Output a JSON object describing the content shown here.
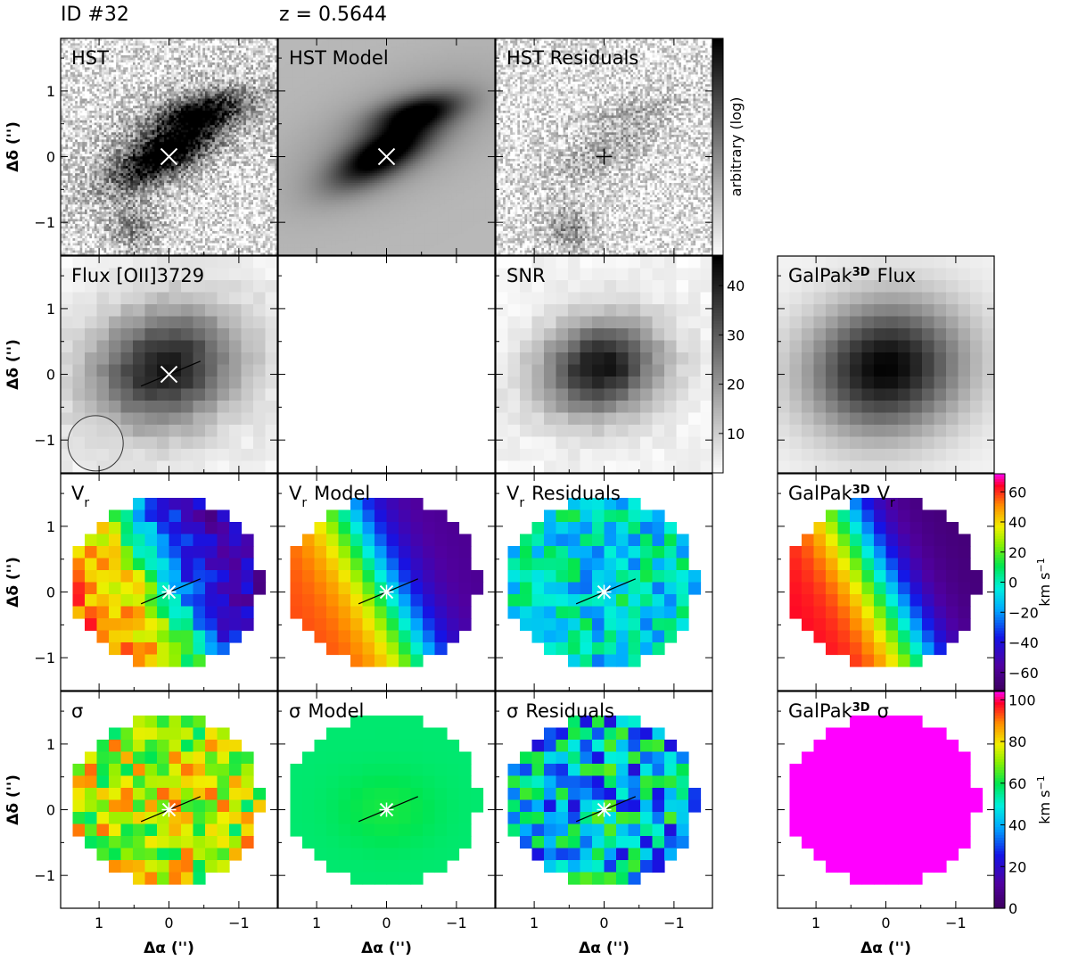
{
  "header": {
    "id_label": "ID #32",
    "z_label": "z = 0.5644"
  },
  "axes": {
    "xlabel": "Δα ('')",
    "ylabel": "Δδ ('')",
    "x_ticks": [
      "1",
      "0",
      "−1"
    ],
    "y_ticks": [
      "1",
      "0",
      "−1"
    ],
    "x_range": [
      1.55,
      -1.55
    ],
    "y_range": [
      -1.5,
      1.8
    ]
  },
  "chart_data": [
    {
      "type": "heatmap",
      "panel": "hst",
      "title": "HST",
      "row": 0,
      "col": 0
    },
    {
      "type": "heatmap",
      "panel": "hst-model",
      "title": "HST Model",
      "row": 0,
      "col": 1
    },
    {
      "type": "heatmap",
      "panel": "hst-residuals",
      "title": "HST Residuals",
      "row": 0,
      "col": 2
    },
    {
      "type": "heatmap",
      "panel": "flux-oii",
      "title": "Flux [OII]3729",
      "row": 1,
      "col": 0
    },
    {
      "type": "heatmap",
      "panel": "blank",
      "title": "",
      "row": 1,
      "col": 1
    },
    {
      "type": "heatmap",
      "panel": "snr",
      "title": "SNR",
      "row": 1,
      "col": 2
    },
    {
      "type": "heatmap",
      "panel": "galpak-flux",
      "title": "GalPak",
      "title_sup": "3D",
      "title_suffix": "Flux",
      "row": 1,
      "col": 3
    },
    {
      "type": "heatmap",
      "panel": "vr",
      "title": "V",
      "title_sub": "r",
      "title_suffix": "",
      "row": 2,
      "col": 0
    },
    {
      "type": "heatmap",
      "panel": "vr-model",
      "title": "V",
      "title_sub": "r",
      "title_suffix": "Model",
      "row": 2,
      "col": 1
    },
    {
      "type": "heatmap",
      "panel": "vr-residuals",
      "title": "V",
      "title_sub": "r",
      "title_suffix": "Residuals",
      "row": 2,
      "col": 2
    },
    {
      "type": "heatmap",
      "panel": "galpak-vr",
      "title": "GalPak",
      "title_sup": "3D",
      "title_suffix": "V",
      "title_suffix_sub": "r",
      "row": 2,
      "col": 3
    },
    {
      "type": "heatmap",
      "panel": "sigma",
      "title": "σ",
      "title_suffix": "",
      "row": 3,
      "col": 0
    },
    {
      "type": "heatmap",
      "panel": "sigma-model",
      "title": "σ",
      "title_suffix": "Model",
      "row": 3,
      "col": 1
    },
    {
      "type": "heatmap",
      "panel": "sigma-residuals",
      "title": "σ",
      "title_suffix": "Residuals",
      "row": 3,
      "col": 2
    },
    {
      "type": "heatmap",
      "panel": "galpak-sigma",
      "title": "GalPak",
      "title_sup": "3D",
      "title_suffix": "σ",
      "row": 3,
      "col": 3
    }
  ],
  "colorbars": {
    "hst": {
      "label": "arbitrary (log)",
      "ticks": [],
      "scale": "log"
    },
    "snr": {
      "label": "",
      "ticks": [
        "10",
        "20",
        "30",
        "40"
      ],
      "range": [
        2,
        46
      ]
    },
    "vr": {
      "label": "km s",
      "label_sup": "−1",
      "ticks": [
        "60",
        "40",
        "20",
        "0",
        "−20",
        "−40",
        "−60"
      ],
      "range": [
        -72,
        72
      ]
    },
    "sigma": {
      "label": "km s",
      "label_sup": "−1",
      "ticks": [
        "100",
        "80",
        "60",
        "40",
        "20",
        "0"
      ],
      "range": [
        0,
        104
      ]
    }
  },
  "colors": {
    "frame": "#000000",
    "galpak_sigma": "#ff00ff"
  }
}
